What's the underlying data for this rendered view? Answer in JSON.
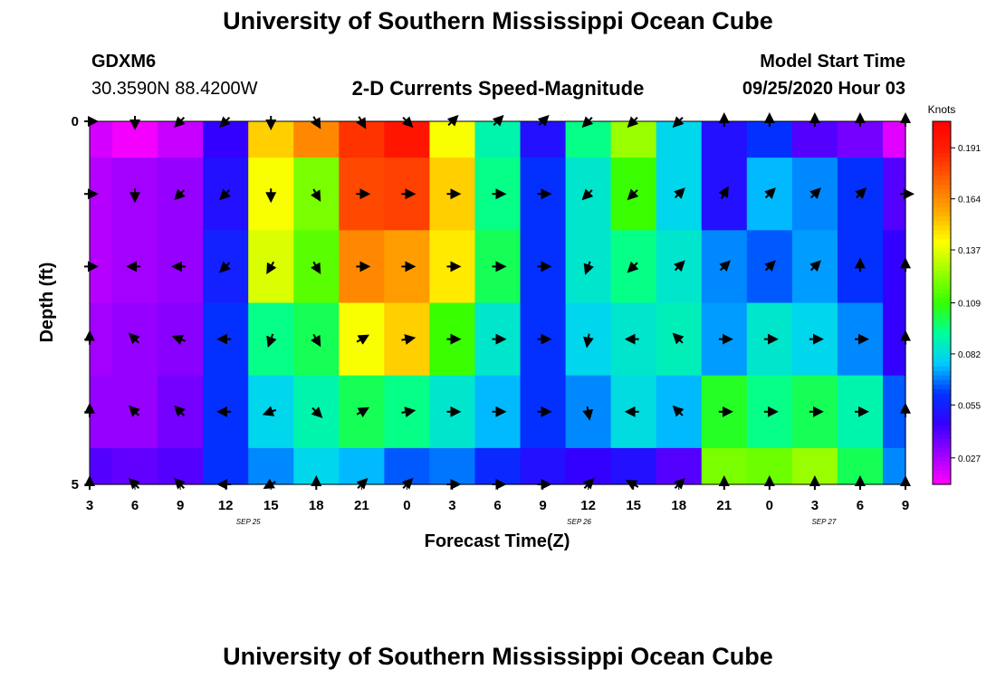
{
  "title": "University of Southern Mississippi Ocean Cube",
  "bottom_title": "University of Southern Mississippi Ocean Cube",
  "station": {
    "id": "GDXM6",
    "location": "30.3590N 88.4200W"
  },
  "model": {
    "label": "Model Start Time",
    "time": "09/25/2020 Hour 03"
  },
  "colors": {
    "arrow": "#000000",
    "scale": [
      "#ff00ff",
      "#9d00ff",
      "#3300ff",
      "#0033ff",
      "#00ccff",
      "#00ff99",
      "#33ff00",
      "#99ff00",
      "#ffff00",
      "#ffaa00",
      "#ff6600",
      "#ff2200",
      "#ff0000"
    ]
  },
  "chart_data": {
    "type": "heatmap",
    "title": "2-D Currents Speed-Magnitude",
    "xlabel": "Forecast Time(Z)",
    "ylabel": "Depth (ft)",
    "xticks": [
      "3",
      "6",
      "9",
      "12",
      "15",
      "18",
      "21",
      "0",
      "3",
      "6",
      "9",
      "12",
      "15",
      "18",
      "21",
      "0",
      "3",
      "6",
      "9"
    ],
    "date_labels": [
      {
        "label": "SEP 25",
        "at_tick": 3.5
      },
      {
        "label": "SEP 26",
        "at_tick": 10.8
      },
      {
        "label": "SEP 27",
        "at_tick": 16.2
      }
    ],
    "yticks": [
      "0",
      "5"
    ],
    "ylim": [
      0,
      5
    ],
    "colorbar": {
      "unit": "Knots",
      "min": 0.013,
      "max": 0.205,
      "ticks": [
        0.191,
        0.164,
        0.137,
        0.109,
        0.082,
        0.055,
        0.027
      ]
    },
    "depths": [
      0,
      1,
      2,
      3,
      4,
      5
    ],
    "times_hours": [
      3,
      6,
      9,
      12,
      15,
      18,
      21,
      24,
      27,
      30,
      33,
      36,
      39,
      42,
      45,
      48,
      51,
      54,
      57
    ],
    "speed_knots": [
      [
        0.02,
        0.015,
        0.022,
        0.045,
        0.15,
        0.165,
        0.185,
        0.195,
        0.14,
        0.09,
        0.05,
        0.095,
        0.125,
        0.08,
        0.05,
        0.06,
        0.04,
        0.035,
        0.018
      ],
      [
        0.025,
        0.028,
        0.03,
        0.05,
        0.14,
        0.12,
        0.18,
        0.182,
        0.15,
        0.095,
        0.06,
        0.085,
        0.11,
        0.08,
        0.05,
        0.075,
        0.07,
        0.06,
        0.04
      ],
      [
        0.025,
        0.028,
        0.03,
        0.055,
        0.135,
        0.115,
        0.165,
        0.16,
        0.145,
        0.1,
        0.06,
        0.085,
        0.095,
        0.085,
        0.07,
        0.065,
        0.072,
        0.06,
        0.045
      ],
      [
        0.028,
        0.03,
        0.032,
        0.06,
        0.095,
        0.1,
        0.14,
        0.15,
        0.11,
        0.085,
        0.06,
        0.08,
        0.085,
        0.088,
        0.072,
        0.085,
        0.08,
        0.07,
        0.045
      ],
      [
        0.03,
        0.03,
        0.035,
        0.06,
        0.08,
        0.09,
        0.1,
        0.095,
        0.085,
        0.075,
        0.06,
        0.07,
        0.082,
        0.075,
        0.105,
        0.095,
        0.1,
        0.09,
        0.065
      ],
      [
        0.04,
        0.038,
        0.04,
        0.06,
        0.07,
        0.08,
        0.075,
        0.065,
        0.068,
        0.058,
        0.05,
        0.045,
        0.05,
        0.04,
        0.12,
        0.118,
        0.125,
        0.1,
        0.07
      ]
    ],
    "direction_deg": [
      [
        90,
        180,
        225,
        225,
        180,
        150,
        150,
        135,
        45,
        45,
        45,
        225,
        225,
        225,
        0,
        0,
        0,
        0,
        0
      ],
      [
        90,
        180,
        225,
        225,
        180,
        150,
        90,
        90,
        90,
        90,
        90,
        225,
        225,
        45,
        30,
        45,
        45,
        45,
        90
      ],
      [
        90,
        270,
        270,
        225,
        210,
        150,
        90,
        90,
        90,
        90,
        90,
        200,
        225,
        45,
        45,
        45,
        45,
        0,
        0
      ],
      [
        0,
        315,
        290,
        270,
        200,
        150,
        60,
        80,
        90,
        90,
        90,
        190,
        270,
        315,
        90,
        90,
        90,
        90,
        0
      ],
      [
        0,
        315,
        315,
        270,
        250,
        135,
        60,
        80,
        90,
        90,
        90,
        170,
        270,
        315,
        90,
        90,
        90,
        90,
        0
      ],
      [
        0,
        315,
        315,
        270,
        240,
        0,
        45,
        45,
        90,
        90,
        90,
        45,
        300,
        45,
        0,
        0,
        0,
        0,
        0
      ]
    ]
  }
}
